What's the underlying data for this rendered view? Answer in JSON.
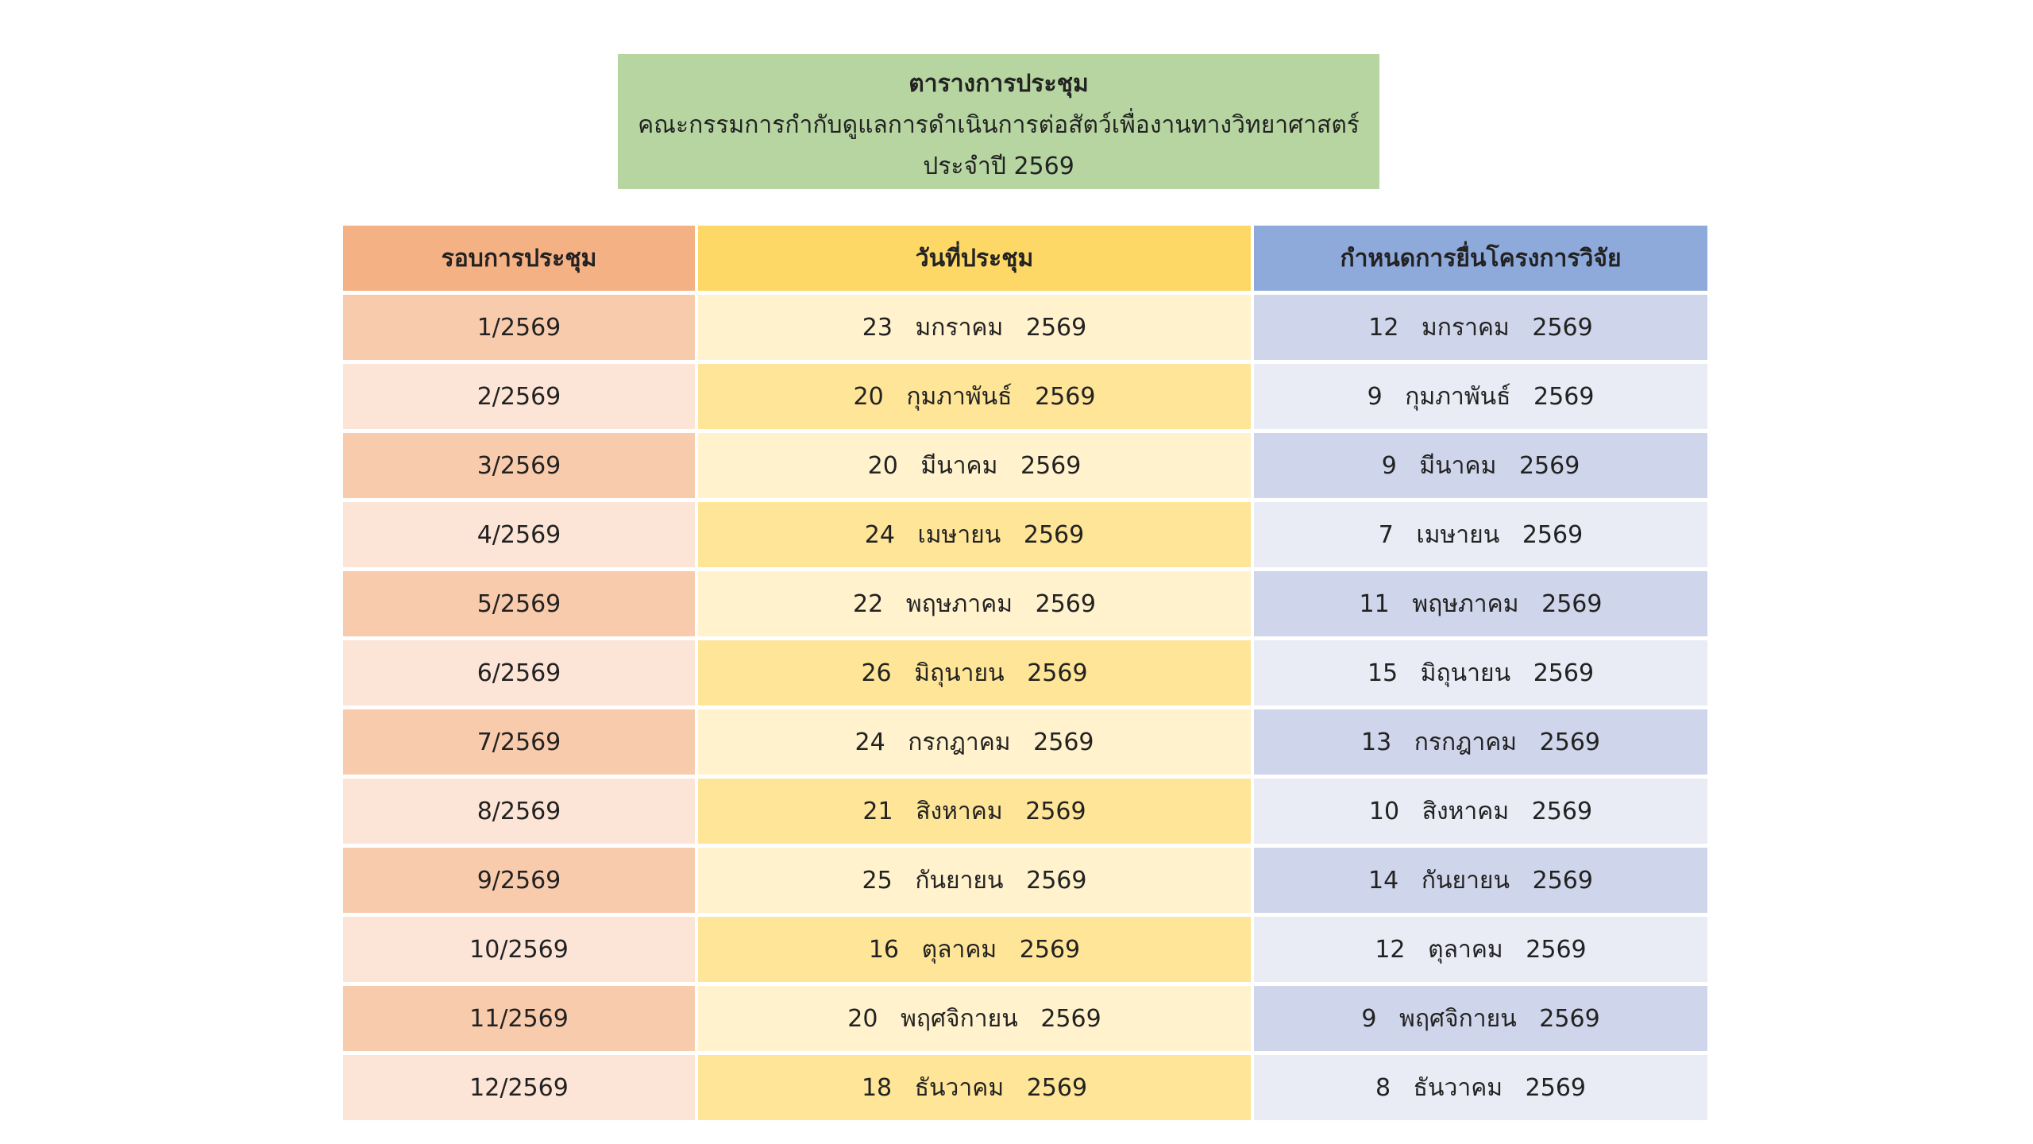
{
  "title": {
    "line1": "ตารางการประชุม",
    "line2": "คณะกรรมการกำกับดูแลการดำเนินการต่อสัตว์เพื่องานทางวิทยาศาสตร์",
    "line3": "ประจำปี 2569",
    "background": "#b6d5a1"
  },
  "table": {
    "headers": [
      "รอบการประชุม",
      "วันที่ประชุม",
      "กำหนดการยื่นโครงการวิจัย"
    ],
    "header_colors": [
      "#f4b183",
      "#fed866",
      "#8eaadb"
    ],
    "rows": [
      [
        "1/2569",
        "23   มกราคม   2569",
        "12   มกราคม   2569"
      ],
      [
        "2/2569",
        "20   กุมภาพันธ์   2569",
        "9   กุมภาพันธ์   2569"
      ],
      [
        "3/2569",
        "20   มีนาคม   2569",
        "9   มีนาคม   2569"
      ],
      [
        "4/2569",
        "24   เมษายน   2569",
        "7   เมษายน   2569"
      ],
      [
        "5/2569",
        "22   พฤษภาคม   2569",
        "11   พฤษภาคม   2569"
      ],
      [
        "6/2569",
        "26   มิถุนายน   2569",
        "15   มิถุนายน   2569"
      ],
      [
        "7/2569",
        "24   กรกฎาคม   2569",
        "13   กรกฎาคม   2569"
      ],
      [
        "8/2569",
        "21   สิงหาคม   2569",
        "10   สิงหาคม   2569"
      ],
      [
        "9/2569",
        "25   กันยายน   2569",
        "14   กันยายน   2569"
      ],
      [
        "10/2569",
        "16   ตุลาคม   2569",
        "12   ตุลาคม   2569"
      ],
      [
        "11/2569",
        "20   พฤศจิกายน   2569",
        "9   พฤศจิกายน   2569"
      ],
      [
        "12/2569",
        "18   ธันวาคม   2569",
        "8   ธันวาคม   2569"
      ]
    ]
  }
}
